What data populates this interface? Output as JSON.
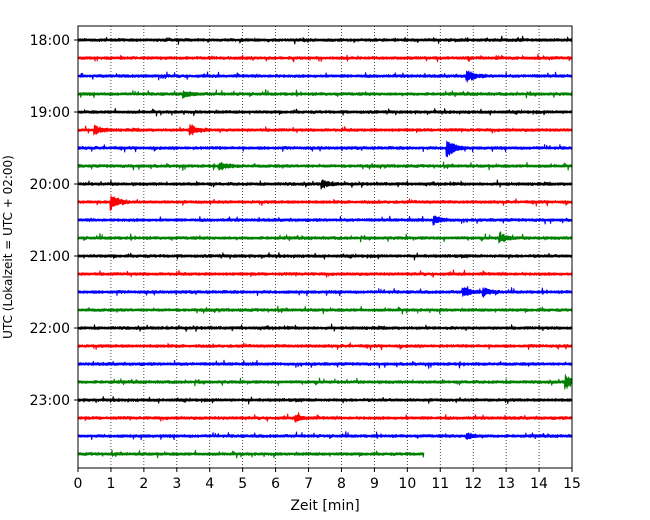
{
  "chart_data": {
    "type": "line",
    "title": "",
    "xlabel": "Zeit  [min]",
    "ylabel": "UTC (Lokalzeit = UTC + 02:00)",
    "xlim": [
      0,
      15
    ],
    "x_ticks": [
      0,
      1,
      2,
      3,
      4,
      5,
      6,
      7,
      8,
      9,
      10,
      11,
      12,
      13,
      14,
      15
    ],
    "y_tick_labels": [
      "18:00",
      "19:00",
      "20:00",
      "21:00",
      "22:00",
      "23:00"
    ],
    "grid": "vertical dotted",
    "color_cycle": [
      "#000000",
      "#ff0000",
      "#0000ff",
      "#008000"
    ],
    "traces": [
      {
        "start": "18:00",
        "end_min": 15,
        "color": "#000000",
        "events": []
      },
      {
        "start": "18:15",
        "end_min": 15,
        "color": "#ff0000",
        "events": []
      },
      {
        "start": "18:30",
        "end_min": 15,
        "color": "#0000ff",
        "events": [
          {
            "t": 11.8,
            "amp": 6
          }
        ]
      },
      {
        "start": "18:45",
        "end_min": 15,
        "color": "#008000",
        "events": [
          {
            "t": 3.2,
            "amp": 3
          }
        ]
      },
      {
        "start": "19:00",
        "end_min": 15,
        "color": "#000000",
        "events": []
      },
      {
        "start": "19:15",
        "end_min": 15,
        "color": "#ff0000",
        "events": [
          {
            "t": 0.5,
            "amp": 4
          },
          {
            "t": 3.4,
            "amp": 6
          }
        ]
      },
      {
        "start": "19:30",
        "end_min": 15,
        "color": "#0000ff",
        "events": [
          {
            "t": 11.2,
            "amp": 10
          }
        ]
      },
      {
        "start": "19:45",
        "end_min": 15,
        "color": "#008000",
        "events": [
          {
            "t": 4.3,
            "amp": 4
          }
        ]
      },
      {
        "start": "20:00",
        "end_min": 15,
        "color": "#000000",
        "events": [
          {
            "t": 7.4,
            "amp": 4
          }
        ]
      },
      {
        "start": "20:15",
        "end_min": 15,
        "color": "#ff0000",
        "events": [
          {
            "t": 1.0,
            "amp": 9
          }
        ]
      },
      {
        "start": "20:30",
        "end_min": 15,
        "color": "#0000ff",
        "events": [
          {
            "t": 10.8,
            "amp": 4
          }
        ]
      },
      {
        "start": "20:45",
        "end_min": 15,
        "color": "#008000",
        "events": [
          {
            "t": 12.8,
            "amp": 5
          }
        ]
      },
      {
        "start": "21:00",
        "end_min": 15,
        "color": "#000000",
        "events": []
      },
      {
        "start": "21:15",
        "end_min": 15,
        "color": "#ff0000",
        "events": []
      },
      {
        "start": "21:30",
        "end_min": 15,
        "color": "#0000ff",
        "events": [
          {
            "t": 11.7,
            "amp": 5
          },
          {
            "t": 12.3,
            "amp": 4
          }
        ]
      },
      {
        "start": "21:45",
        "end_min": 15,
        "color": "#008000",
        "events": []
      },
      {
        "start": "22:00",
        "end_min": 15,
        "color": "#000000",
        "events": []
      },
      {
        "start": "22:15",
        "end_min": 15,
        "color": "#ff0000",
        "events": []
      },
      {
        "start": "22:30",
        "end_min": 15,
        "color": "#0000ff",
        "events": []
      },
      {
        "start": "22:45",
        "end_min": 15,
        "color": "#008000",
        "events": [
          {
            "t": 14.8,
            "amp": 7
          }
        ]
      },
      {
        "start": "23:00",
        "end_min": 15,
        "color": "#000000",
        "events": []
      },
      {
        "start": "23:15",
        "end_min": 15,
        "color": "#ff0000",
        "events": [
          {
            "t": 6.6,
            "amp": 3
          }
        ]
      },
      {
        "start": "23:30",
        "end_min": 15,
        "color": "#0000ff",
        "events": [
          {
            "t": 11.8,
            "amp": 3
          }
        ]
      },
      {
        "start": "23:45",
        "end_min": 10.5,
        "color": "#008000",
        "events": []
      }
    ]
  }
}
